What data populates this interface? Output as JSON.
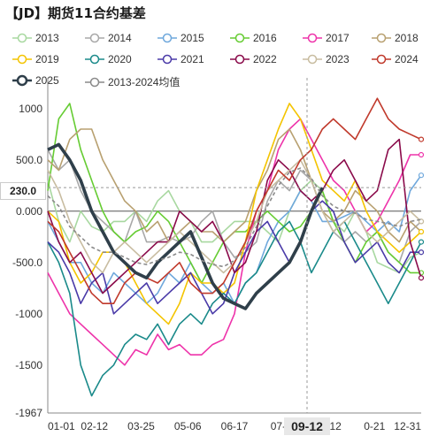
{
  "title": "【JD】期货11合约基差",
  "cursor": {
    "y_label": "230.0",
    "x_label": "09-12"
  },
  "legend_colors": {
    "2013": "#a8d8a0",
    "2014": "#a8a8a8",
    "2015": "#6fa8dc",
    "2016": "#66cc33",
    "2017": "#ee33aa",
    "2018": "#b8a070",
    "2019": "#f4c400",
    "2020": "#1a8a8a",
    "2021": "#4a3aa8",
    "2022": "#8a0a4a",
    "2023": "#c8bca0",
    "2024": "#c0392b",
    "2025": "#2f3f4a",
    "2013-2024均值": "#8a8a8a"
  },
  "chart_data": {
    "type": "line",
    "title": "",
    "xlabel": "",
    "ylabel": "",
    "x_ticks": [
      "01-01",
      "02-12",
      "03-25",
      "05-06",
      "06-17",
      "07-2",
      "09-12",
      "0-21",
      "12-31"
    ],
    "y_ticks": [
      1000,
      500.0,
      0.0,
      -500.0,
      -1000,
      -1500,
      -1967
    ],
    "y_tick_labels": [
      "1000",
      "500.0",
      "0.000",
      "-500.0",
      "-1000",
      "-1500",
      "-1967"
    ],
    "ylim": [
      -1967,
      1300
    ],
    "series": [
      {
        "name": "2013",
        "values": [
          300,
          -100,
          -300,
          0,
          -150,
          -200,
          -100,
          -100,
          0,
          -100,
          100,
          200,
          0,
          -100,
          -300,
          -300,
          -200,
          -100,
          -100,
          -100,
          -200,
          -300,
          0,
          200,
          300,
          200,
          -100,
          -200,
          0,
          -200,
          -500,
          -550,
          -600,
          -450,
          -400
        ]
      },
      {
        "name": "2014",
        "values": [
          600,
          400,
          500,
          200,
          0,
          -100,
          -200,
          -300,
          0,
          -300,
          -300,
          -250,
          -300,
          -250,
          -100,
          0,
          -300,
          -450,
          -400,
          -300,
          100,
          300,
          200,
          400,
          300,
          0,
          -200,
          -300,
          -200,
          -300,
          -200,
          -400,
          -500,
          -200,
          -100
        ]
      },
      {
        "name": "2015",
        "values": [
          -100,
          -300,
          -500,
          -500,
          -700,
          -800,
          -600,
          -700,
          -800,
          -900,
          -800,
          -600,
          -700,
          -500,
          -700,
          -800,
          -700,
          -900,
          -700,
          -600,
          -300,
          -100,
          0,
          200,
          100,
          -100,
          -100,
          -50,
          0,
          -100,
          -200,
          -100,
          -200,
          200,
          350
        ]
      },
      {
        "name": "2016",
        "values": [
          200,
          900,
          1050,
          600,
          300,
          0,
          -200,
          -300,
          -200,
          -150,
          0,
          -100,
          -300,
          -500,
          -700,
          -500,
          -300,
          -200,
          -200,
          -100,
          0,
          -100,
          -200,
          -150,
          0,
          200,
          -100,
          -300,
          -500,
          -300,
          -200,
          -400,
          -500,
          -600,
          -600
        ]
      },
      {
        "name": "2017",
        "values": [
          -600,
          -800,
          -1000,
          -1100,
          -1200,
          -1300,
          -1400,
          -1500,
          -1350,
          -1400,
          -1200,
          -1350,
          -1300,
          -1400,
          -1400,
          -1300,
          -1250,
          -1000,
          -400,
          0,
          200,
          600,
          800,
          900,
          700,
          500,
          300,
          200,
          0,
          -200,
          -100,
          100,
          300,
          550,
          550
        ]
      },
      {
        "name": "2018",
        "values": [
          500,
          400,
          700,
          800,
          800,
          500,
          300,
          100,
          0,
          -200,
          -100,
          -300,
          -200,
          -100,
          -200,
          -200,
          -300,
          -200,
          -100,
          200,
          400,
          700,
          800,
          600,
          300,
          0,
          -100,
          0,
          200,
          100,
          0,
          -200,
          -300,
          -100,
          -200
        ]
      },
      {
        "name": "2019",
        "values": [
          0,
          -100,
          -500,
          -700,
          -600,
          -400,
          -400,
          -500,
          -700,
          -900,
          -1000,
          -1100,
          -900,
          -600,
          -700,
          -700,
          -800,
          -700,
          -300,
          200,
          500,
          800,
          1050,
          900,
          600,
          300,
          200,
          100,
          300,
          0,
          -200,
          -300,
          -400,
          -300,
          -200
        ]
      },
      {
        "name": "2020",
        "values": [
          -300,
          -500,
          -800,
          -1500,
          -1800,
          -1600,
          -1500,
          -1300,
          -1200,
          -1250,
          -1100,
          -1300,
          -1100,
          -1000,
          -1100,
          -900,
          -800,
          -900,
          -700,
          -600,
          -400,
          -200,
          -100,
          -300,
          -600,
          -400,
          -200,
          -100,
          -300,
          -500,
          -700,
          -900,
          -700,
          -500,
          -300
        ]
      },
      {
        "name": "2021",
        "values": [
          -300,
          -400,
          -600,
          -900,
          -700,
          -600,
          -1000,
          -900,
          -800,
          -700,
          -900,
          -800,
          -700,
          -600,
          -800,
          -1000,
          -900,
          -600,
          -400,
          -200,
          -100,
          -300,
          -500,
          -300,
          0,
          100,
          0,
          -300,
          -500,
          -400,
          -300,
          -500,
          -600,
          -400,
          -400
        ]
      },
      {
        "name": "2022",
        "values": [
          0,
          -300,
          -500,
          -400,
          -600,
          -800,
          -700,
          -600,
          -500,
          -400,
          -300,
          -300,
          0,
          -100,
          -200,
          -100,
          -300,
          -600,
          -500,
          -200,
          300,
          500,
          400,
          200,
          100,
          200,
          400,
          500,
          300,
          100,
          200,
          600,
          700,
          -300,
          -650
        ]
      },
      {
        "name": "2023",
        "values": [
          400,
          200,
          -100,
          -300,
          -500,
          -600,
          -400,
          -300,
          -400,
          -500,
          -400,
          -300,
          -200,
          -300,
          -400,
          -500,
          -600,
          -500,
          -300,
          -100,
          200,
          300,
          400,
          500,
          300,
          0,
          -200,
          -100,
          0,
          -200,
          -300,
          -200,
          -100,
          0,
          -100
        ]
      },
      {
        "name": "2024",
        "values": [
          -100,
          -200,
          -400,
          -600,
          -800,
          -900,
          -900,
          -700,
          -600,
          -650,
          -700,
          -600,
          -500,
          -700,
          -800,
          -800,
          -700,
          -500,
          -300,
          0,
          200,
          400,
          300,
          500,
          600,
          800,
          900,
          800,
          700,
          900,
          1100,
          900,
          800,
          750,
          700
        ]
      },
      {
        "name": "2025",
        "values": [
          600,
          650,
          500,
          300,
          0,
          -200,
          -400,
          -500,
          -600,
          -650,
          -500,
          -400,
          -300,
          -200,
          -450,
          -700,
          -850,
          -900,
          -950,
          -800,
          -700,
          -600,
          -500,
          -300,
          0,
          230
        ]
      },
      {
        "name": "2013-2024均值",
        "values": [
          150,
          50,
          -150,
          -250,
          -350,
          -400,
          -400,
          -450,
          -500,
          -520,
          -480,
          -450,
          -400,
          -420,
          -480,
          -520,
          -540,
          -480,
          -350,
          -150,
          50,
          250,
          380,
          420,
          320,
          150,
          50,
          0,
          -20,
          -80,
          -100,
          -120,
          -150,
          -100,
          -80
        ]
      }
    ]
  }
}
